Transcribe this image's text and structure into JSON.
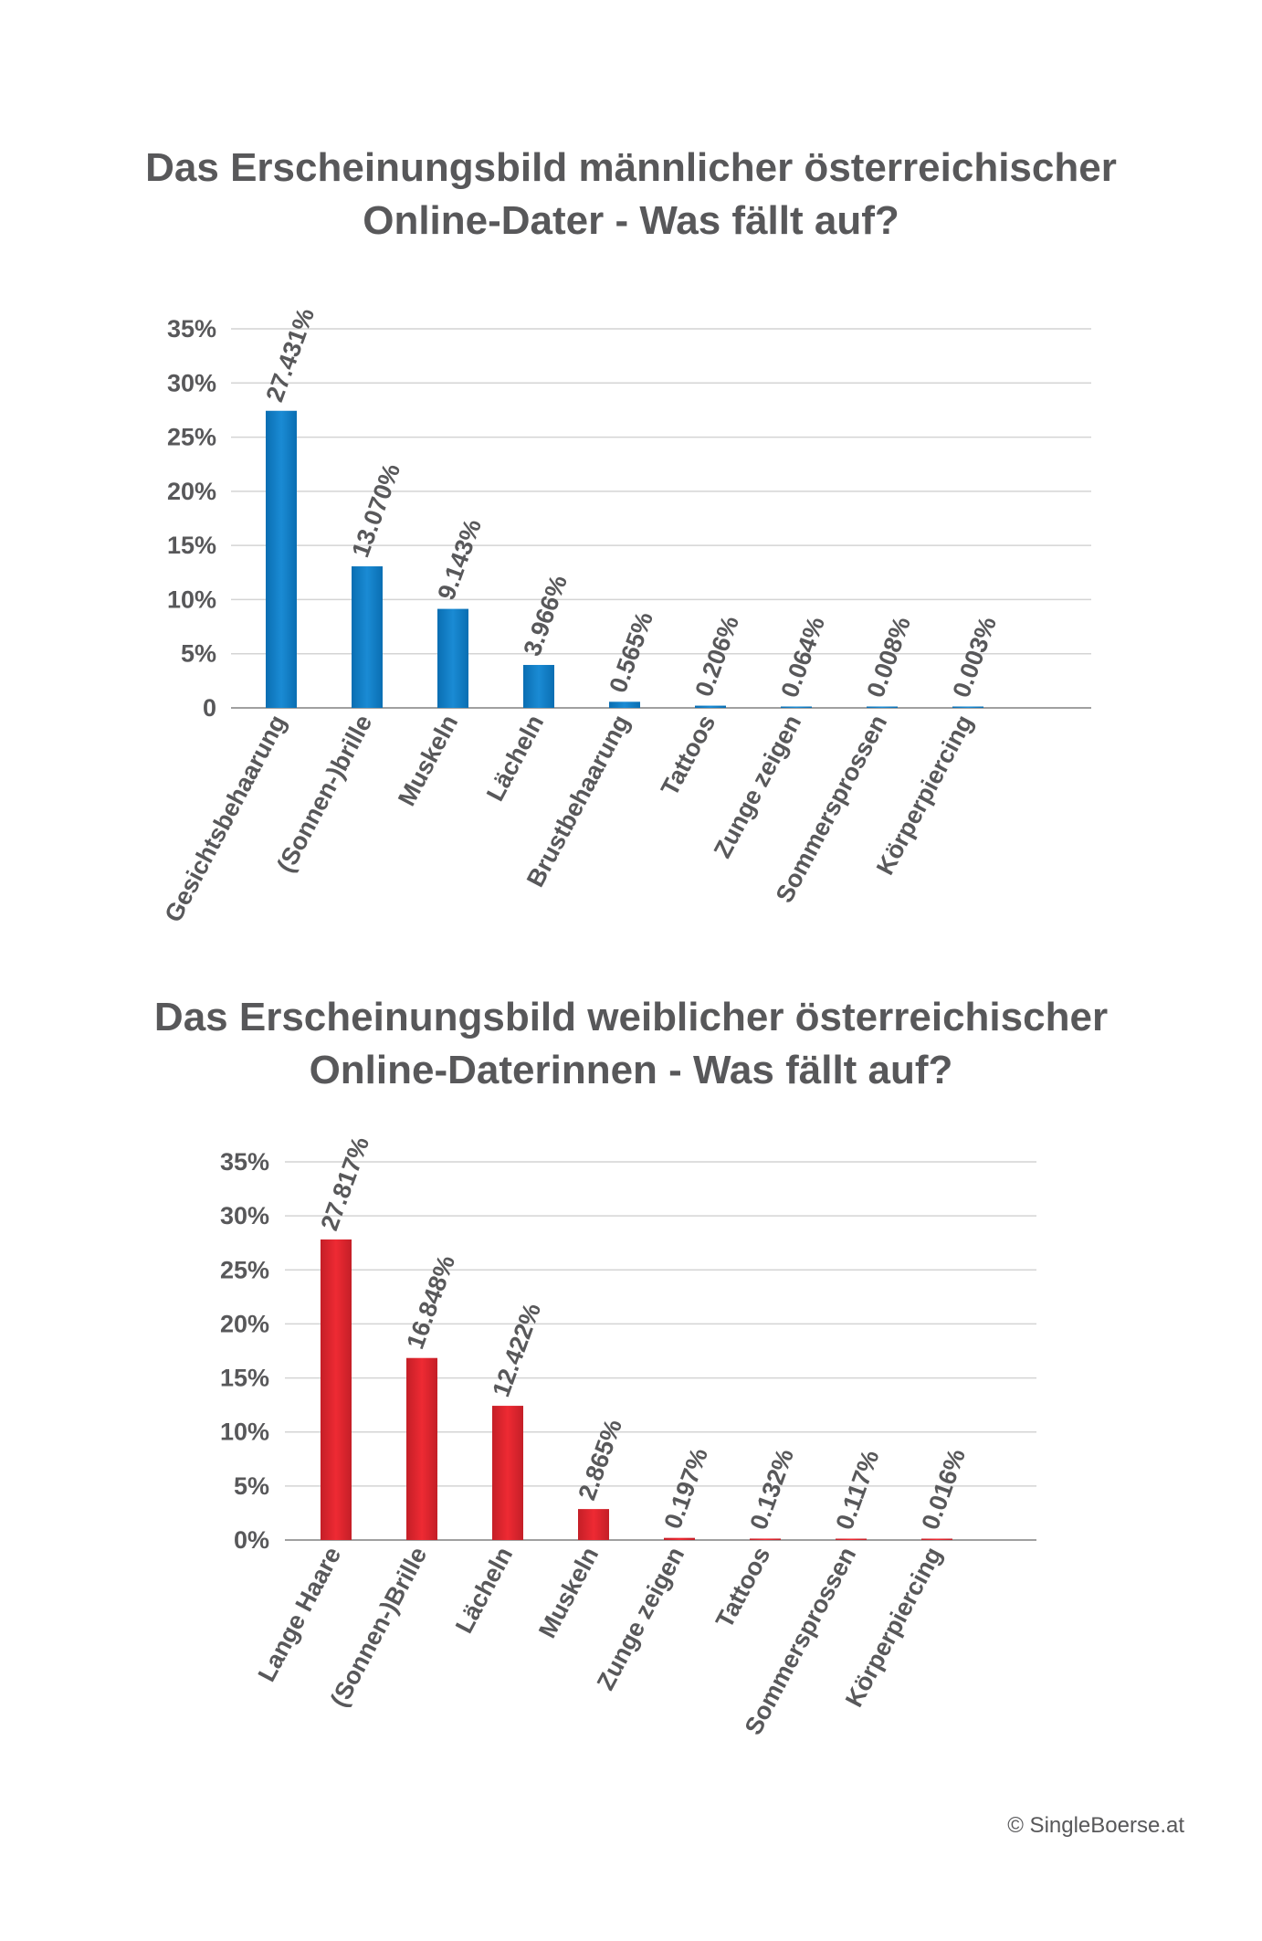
{
  "chart_data": [
    {
      "type": "bar",
      "title_lines": [
        "Das Erscheinungsbild männlicher österreichischer",
        "Online-Dater - Was fällt auf?"
      ],
      "categories": [
        "Gesichtsbehaarung",
        "(Sonnen-)brille",
        "Muskeln",
        "Lächeln",
        "Brustbehaarung",
        "Tattoos",
        "Zunge zeigen",
        "Sommersprossen",
        "Körperpiercing"
      ],
      "values": [
        27.431,
        13.07,
        9.143,
        3.966,
        0.565,
        0.206,
        0.064,
        0.008,
        0.003
      ],
      "value_labels": [
        "27.431%",
        "13.070%",
        "9.143%",
        "3.966%",
        "0.565%",
        "0.206%",
        "0.064%",
        "0.008%",
        "0.003%"
      ],
      "y_ticks": [
        0,
        5,
        10,
        15,
        20,
        25,
        30,
        35
      ],
      "y_tick_labels": [
        "0",
        "5%",
        "10%",
        "15%",
        "20%",
        "25%",
        "30%",
        "35%"
      ],
      "ylim": [
        0,
        35
      ],
      "xlabel": "",
      "ylabel": "",
      "grid": true,
      "color": "#0a78bf"
    },
    {
      "type": "bar",
      "title_lines": [
        "Das Erscheinungsbild weiblicher  österreichischer",
        "Online-Daterinnen - Was fällt auf?"
      ],
      "categories": [
        "Lange Haare",
        "(Sonnen-)Brille",
        "Lächeln",
        "Muskeln",
        "Zunge zeigen",
        "Tattoos",
        "Sommersprossen",
        "Körperpiercing"
      ],
      "values": [
        27.817,
        16.848,
        12.422,
        2.865,
        0.197,
        0.132,
        0.117,
        0.016
      ],
      "value_labels": [
        "27.817%",
        "16.848%",
        "12.422%",
        "2.865%",
        "0.197%",
        "0.132%",
        "0.117%",
        "0.016%"
      ],
      "y_ticks": [
        0,
        5,
        10,
        15,
        20,
        25,
        30,
        35
      ],
      "y_tick_labels": [
        "0%",
        "5%",
        "10%",
        "15%",
        "20%",
        "25%",
        "30%",
        "35%"
      ],
      "ylim": [
        0,
        35
      ],
      "xlabel": "",
      "ylabel": "",
      "grid": true,
      "color": "#e0262f"
    }
  ],
  "credit": "© SingleBoerse.at"
}
